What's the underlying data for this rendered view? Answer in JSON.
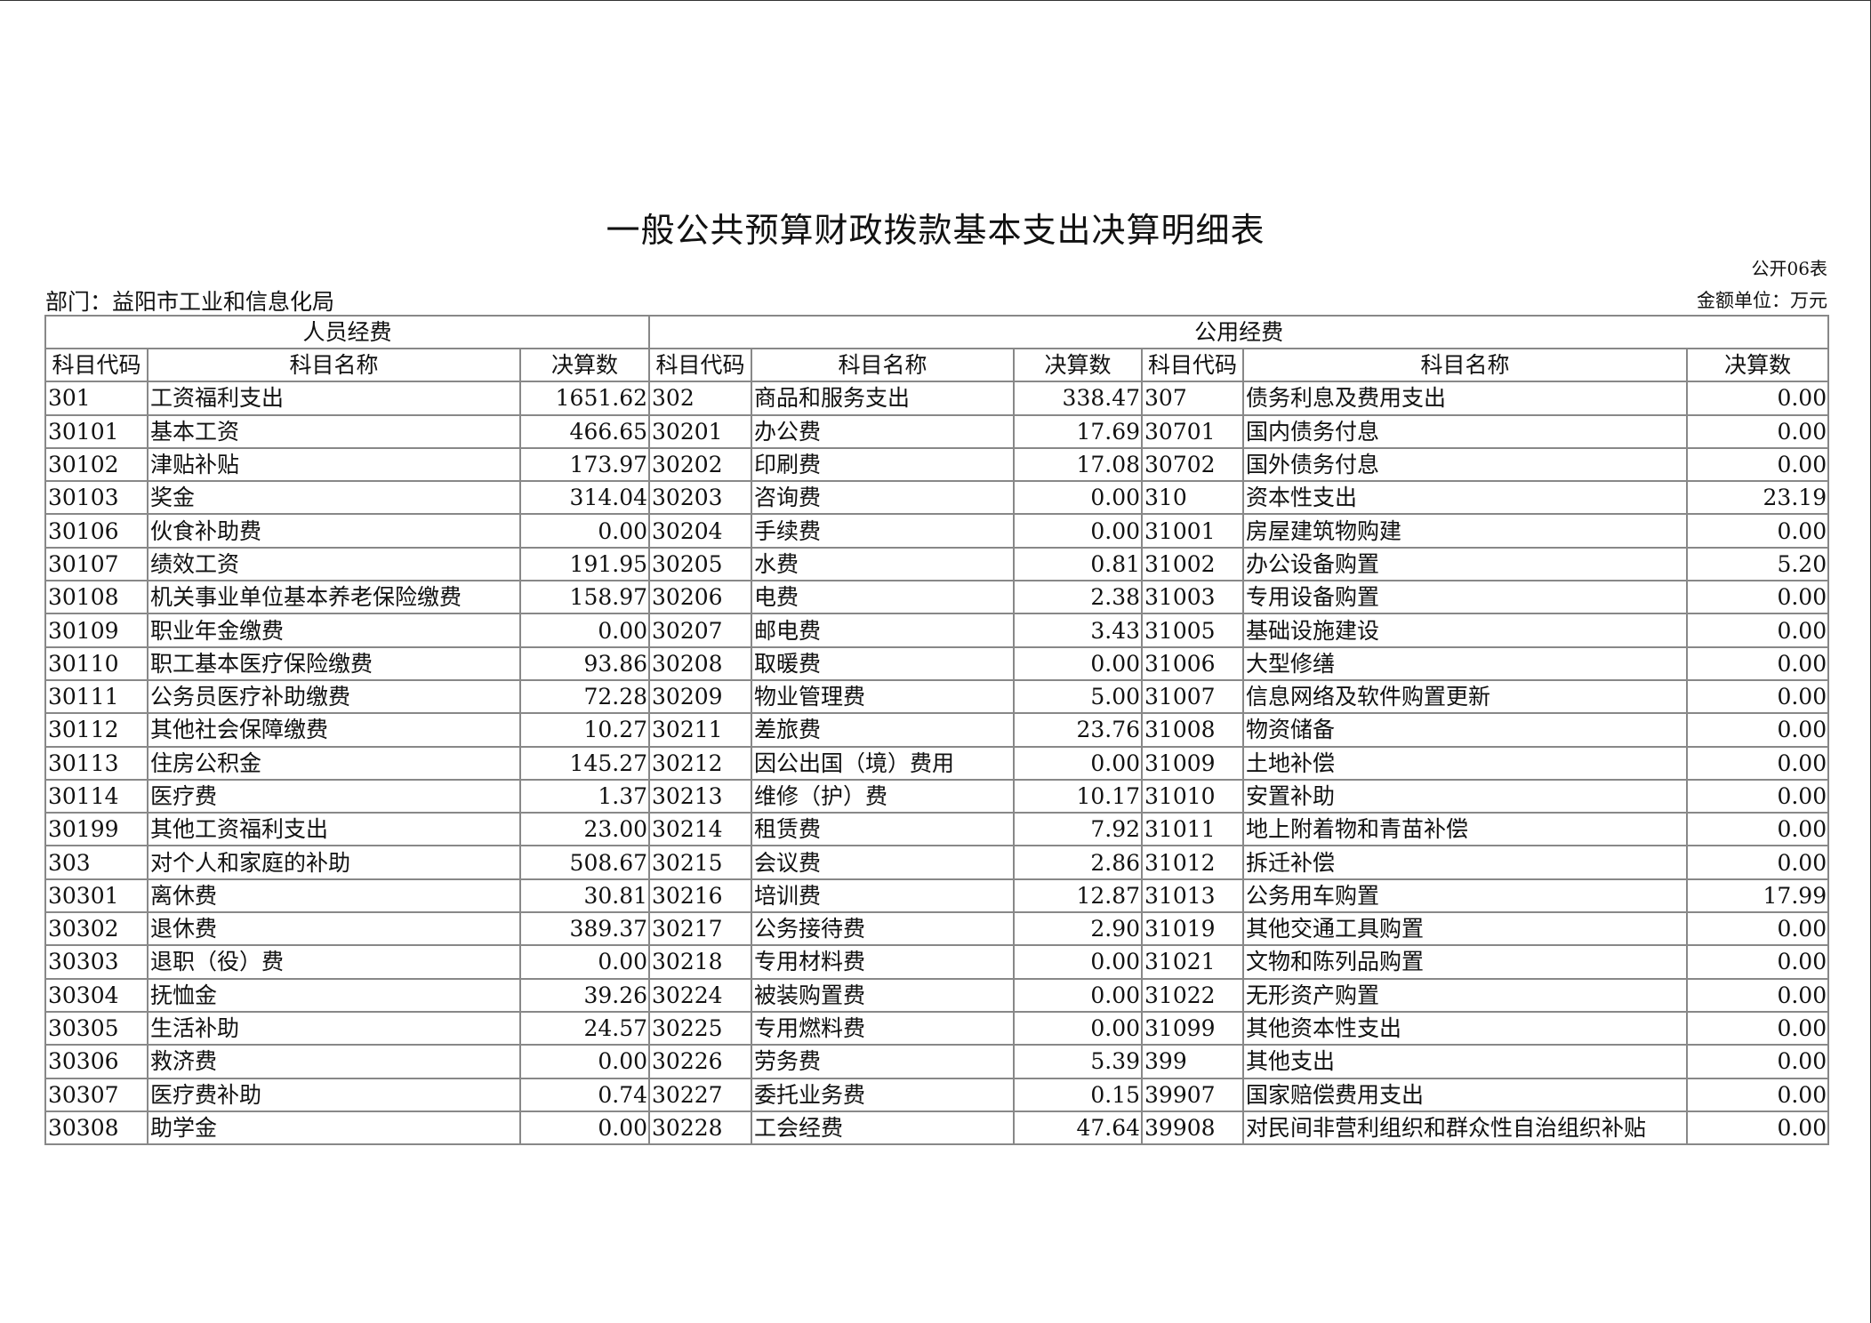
{
  "title": "一般公共预算财政拨款基本支出决算明细表",
  "form_no": "公开06表",
  "department": "部门：益阳市工业和信息化局",
  "unit": "金额单位：万元",
  "table": {
    "group_headers": [
      "人员经费",
      "公用经费"
    ],
    "column_headers": [
      "科目代码",
      "科目名称",
      "决算数",
      "科目代码",
      "科目名称",
      "决算数",
      "科目代码",
      "科目名称",
      "决算数"
    ],
    "rows": [
      [
        "301",
        "工资福利支出",
        "1651.62",
        "302",
        "商品和服务支出",
        "338.47",
        "307",
        "债务利息及费用支出",
        "0.00"
      ],
      [
        "30101",
        "基本工资",
        "466.65",
        "30201",
        "办公费",
        "17.69",
        "30701",
        "国内债务付息",
        "0.00"
      ],
      [
        "30102",
        "津贴补贴",
        "173.97",
        "30202",
        "印刷费",
        "17.08",
        "30702",
        "国外债务付息",
        "0.00"
      ],
      [
        "30103",
        "奖金",
        "314.04",
        "30203",
        "咨询费",
        "0.00",
        "310",
        "资本性支出",
        "23.19"
      ],
      [
        "30106",
        "伙食补助费",
        "0.00",
        "30204",
        "手续费",
        "0.00",
        "31001",
        "房屋建筑物购建",
        "0.00"
      ],
      [
        "30107",
        "绩效工资",
        "191.95",
        "30205",
        "水费",
        "0.81",
        "31002",
        "办公设备购置",
        "5.20"
      ],
      [
        "30108",
        "机关事业单位基本养老保险缴费",
        "158.97",
        "30206",
        "电费",
        "2.38",
        "31003",
        "专用设备购置",
        "0.00"
      ],
      [
        "30109",
        "职业年金缴费",
        "0.00",
        "30207",
        "邮电费",
        "3.43",
        "31005",
        "基础设施建设",
        "0.00"
      ],
      [
        "30110",
        "职工基本医疗保险缴费",
        "93.86",
        "30208",
        "取暖费",
        "0.00",
        "31006",
        "大型修缮",
        "0.00"
      ],
      [
        "30111",
        "公务员医疗补助缴费",
        "72.28",
        "30209",
        "物业管理费",
        "5.00",
        "31007",
        "信息网络及软件购置更新",
        "0.00"
      ],
      [
        "30112",
        "其他社会保障缴费",
        "10.27",
        "30211",
        "差旅费",
        "23.76",
        "31008",
        "物资储备",
        "0.00"
      ],
      [
        "30113",
        "住房公积金",
        "145.27",
        "30212",
        "因公出国（境）费用",
        "0.00",
        "31009",
        "土地补偿",
        "0.00"
      ],
      [
        "30114",
        "医疗费",
        "1.37",
        "30213",
        "维修（护）费",
        "10.17",
        "31010",
        "安置补助",
        "0.00"
      ],
      [
        "30199",
        "其他工资福利支出",
        "23.00",
        "30214",
        "租赁费",
        "7.92",
        "31011",
        "地上附着物和青苗补偿",
        "0.00"
      ],
      [
        "303",
        "对个人和家庭的补助",
        "508.67",
        "30215",
        "会议费",
        "2.86",
        "31012",
        "拆迁补偿",
        "0.00"
      ],
      [
        "30301",
        "离休费",
        "30.81",
        "30216",
        "培训费",
        "12.87",
        "31013",
        "公务用车购置",
        "17.99"
      ],
      [
        "30302",
        "退休费",
        "389.37",
        "30217",
        "公务接待费",
        "2.90",
        "31019",
        "其他交通工具购置",
        "0.00"
      ],
      [
        "30303",
        "退职（役）费",
        "0.00",
        "30218",
        "专用材料费",
        "0.00",
        "31021",
        "文物和陈列品购置",
        "0.00"
      ],
      [
        "30304",
        "抚恤金",
        "39.26",
        "30224",
        "被装购置费",
        "0.00",
        "31022",
        "无形资产购置",
        "0.00"
      ],
      [
        "30305",
        "生活补助",
        "24.57",
        "30225",
        "专用燃料费",
        "0.00",
        "31099",
        "其他资本性支出",
        "0.00"
      ],
      [
        "30306",
        "救济费",
        "0.00",
        "30226",
        "劳务费",
        "5.39",
        "399",
        "其他支出",
        "0.00"
      ],
      [
        "30307",
        "医疗费补助",
        "0.74",
        "30227",
        "委托业务费",
        "0.15",
        "39907",
        "国家赔偿费用支出",
        "0.00"
      ],
      [
        "30308",
        "助学金",
        "0.00",
        "30228",
        "工会经费",
        "47.64",
        "39908",
        "对民间非营利组织和群众性自治组织补贴",
        "0.00"
      ]
    ]
  }
}
